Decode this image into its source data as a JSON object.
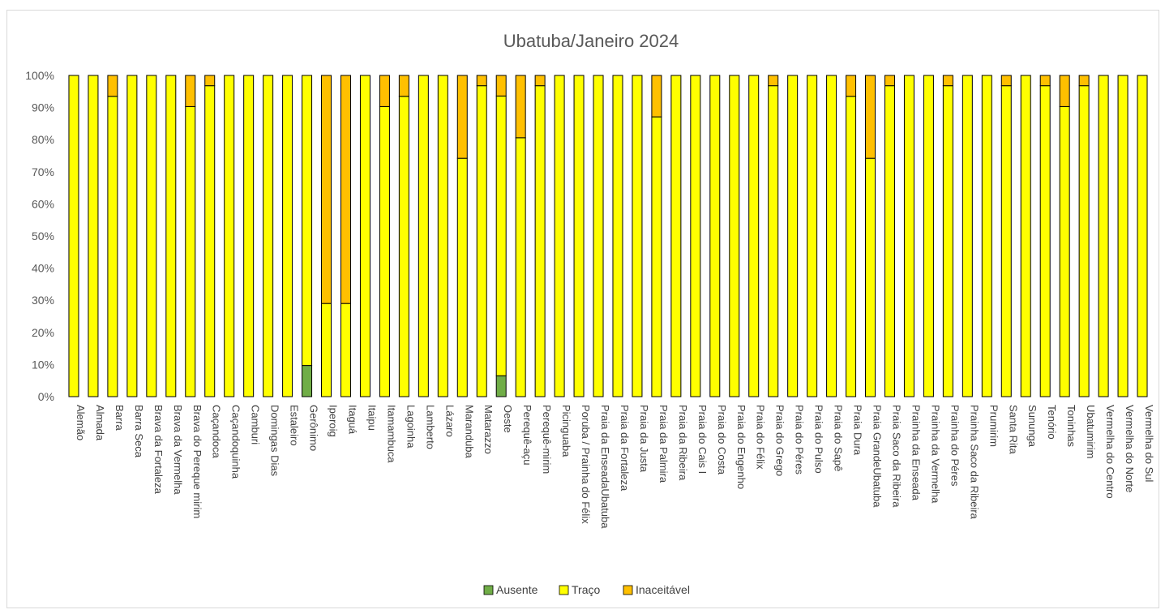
{
  "chart_data": {
    "type": "bar",
    "stacked": true,
    "percent": true,
    "title": "Ubatuba/Janeiro 2024",
    "ylim": [
      0,
      100
    ],
    "y_ticks": [
      "0%",
      "10%",
      "20%",
      "30%",
      "40%",
      "50%",
      "60%",
      "70%",
      "80%",
      "90%",
      "100%"
    ],
    "legend_position": "bottom",
    "categories": [
      "Alemão",
      "Almada",
      "Barra",
      "Barra Seca",
      "Brava da Fortaleza",
      "Brava da Vermelha",
      "Brava do Pereque mirim",
      "Caçandoca",
      "Caçandoquinha",
      "Camburi",
      "Domingas Dias",
      "Estaleiro",
      "Gerônimo",
      "Iperoig",
      "Itaguá",
      "Itaipu",
      "Itamambuca",
      "Lagoinha",
      "Lamberto",
      "Lázaro",
      "Maranduba",
      "Matarazzo",
      "Oeste",
      "Perequê-açu",
      "Perequê-mirim",
      "Picinguaba",
      "Poruba / Prainha do Félix",
      "Praia da EnseadaUbatuba",
      "Praia da Fortaleza",
      "Praia da Justa",
      "Praia da Palmira",
      "Praia da Ribeira",
      "Praia do Cais I",
      "Praia do Costa",
      "Praia do Engenho",
      "Praia do Félix",
      "Praia do Grego",
      "Praia do Péres",
      "Praia do Pulso",
      "Praia do Sapê",
      "Praia Dura",
      "Praia GrandeUbatuba",
      "Praia Saco da Ribeira",
      "Prainha da Enseada",
      "Prainha da Vermelha",
      "Prainha do Péres",
      "Prainha Saco da Ribeira",
      "Prumirim",
      "Santa Rita",
      "Sununga",
      "Tenório",
      "Toninhas",
      "Ubatumirim",
      "Vermelha do Centro",
      "Vermelha do Norte",
      "Vermelha do Sul"
    ],
    "series": [
      {
        "name": "Ausente",
        "color": "#70ad47",
        "values": [
          0,
          0,
          0,
          0,
          0,
          0,
          0,
          0,
          0,
          0,
          0,
          0,
          9.7,
          0,
          0,
          0,
          0,
          0,
          0,
          0,
          0,
          0,
          6.5,
          0,
          0,
          0,
          0,
          0,
          0,
          0,
          0,
          0,
          0,
          0,
          0,
          0,
          0,
          0,
          0,
          0,
          0,
          0,
          0,
          0,
          0,
          0,
          0,
          0,
          0,
          0,
          0,
          0,
          0,
          0,
          0,
          0
        ]
      },
      {
        "name": "Traço",
        "color": "#ffff00",
        "values": [
          100,
          100,
          93.5,
          100,
          100,
          100,
          90.3,
          96.8,
          100,
          100,
          100,
          100,
          90.3,
          29,
          29,
          100,
          90.3,
          93.5,
          100,
          100,
          74.2,
          96.8,
          87.1,
          80.6,
          96.8,
          100,
          100,
          100,
          100,
          100,
          87.1,
          100,
          100,
          100,
          100,
          100,
          96.8,
          100,
          100,
          100,
          93.5,
          74.2,
          96.8,
          100,
          100,
          96.8,
          100,
          100,
          96.8,
          100,
          96.8,
          90.3,
          96.8,
          100,
          100,
          100
        ]
      },
      {
        "name": "Inaceitável",
        "color": "#ffc000",
        "values": [
          0,
          0,
          6.5,
          0,
          0,
          0,
          9.7,
          3.2,
          0,
          0,
          0,
          0,
          0,
          71,
          71,
          0,
          9.7,
          6.5,
          0,
          0,
          25.8,
          3.2,
          6.4,
          19.4,
          3.2,
          0,
          0,
          0,
          0,
          0,
          12.9,
          0,
          0,
          0,
          0,
          0,
          3.2,
          0,
          0,
          0,
          6.5,
          25.8,
          3.2,
          0,
          0,
          3.2,
          0,
          0,
          3.2,
          0,
          3.2,
          9.7,
          3.2,
          0,
          0,
          0
        ]
      }
    ]
  }
}
